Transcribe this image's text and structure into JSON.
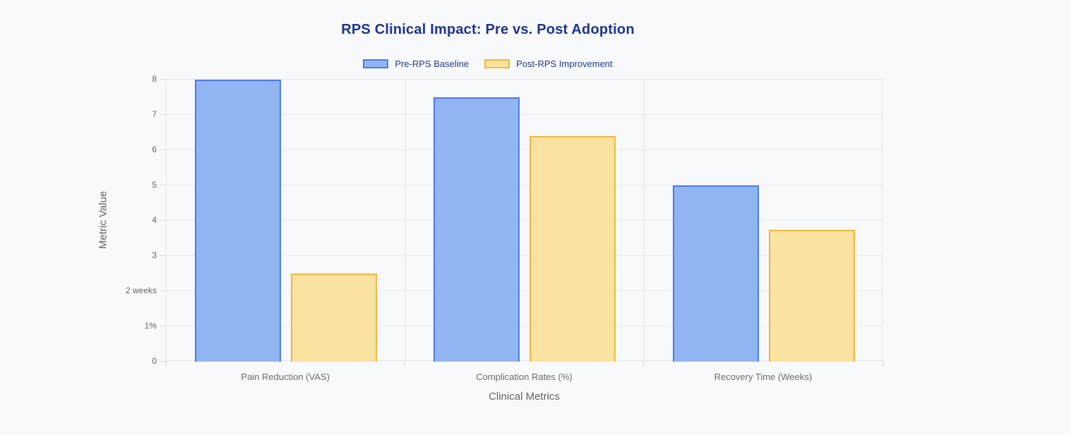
{
  "chart_data": {
    "type": "bar",
    "title": "RPS Clinical Impact: Pre vs. Post Adoption",
    "categories": [
      "Pain Reduction (VAS)",
      "Complication Rates (%)",
      "Recovery Time (Weeks)"
    ],
    "series": [
      {
        "name": "Pre-RPS Baseline",
        "values": [
          8,
          7.5,
          5
        ],
        "fill": "#90b5f2",
        "border": "#4a7de4"
      },
      {
        "name": "Post-RPS Improvement",
        "values": [
          2.5,
          6.4,
          3.75
        ],
        "fill": "#fae2a0",
        "border": "#f0b83d"
      }
    ],
    "xlabel": "Clinical Metrics",
    "ylabel": "Metric Value",
    "ylim": [
      0,
      8
    ],
    "ytick_labels": [
      "0",
      "1%",
      "2 weeks",
      "3",
      "4",
      "5",
      "6",
      "7",
      "8"
    ],
    "grid": true,
    "legend_position": "top",
    "colors": {
      "title_text": "#1e338e",
      "background": "#f8f9fb",
      "gridline": "#e6e8eb",
      "axis_tick": "#d2d5d9",
      "tick_text": "#63676c",
      "axis_title_text": "#5f6469"
    }
  }
}
